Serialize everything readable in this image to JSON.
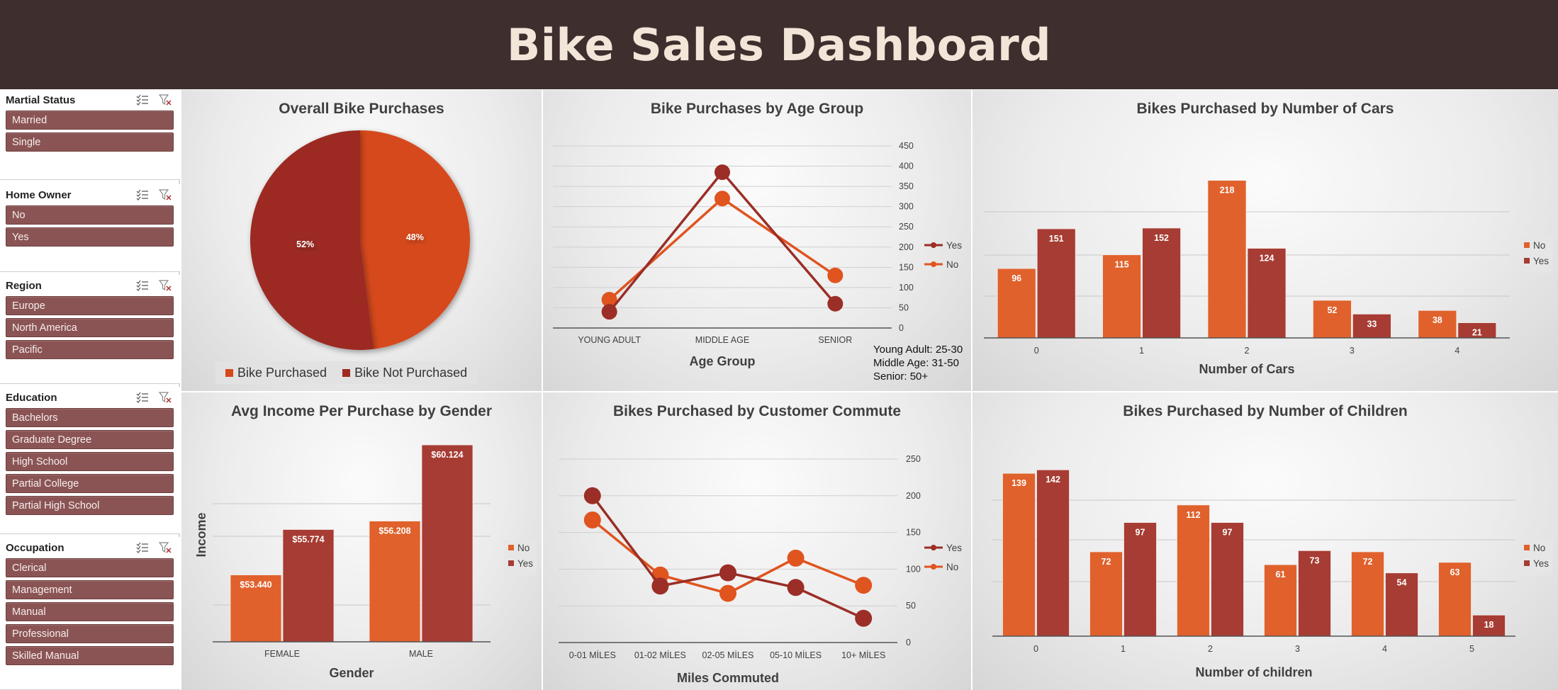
{
  "title": "Bike Sales Dashboard",
  "colors": {
    "no": "#e0612c",
    "yes": "#a63c33",
    "line_yes": "#9b2e26",
    "line_no": "#e0541f",
    "pie_purchased": "#d6491b",
    "pie_not": "#9c2b20",
    "slicer": "#8b5454",
    "header": "#3f2e2e"
  },
  "slicers": [
    {
      "title": "Martial Status",
      "items": [
        "Married",
        "Single"
      ]
    },
    {
      "title": "Home Owner",
      "items": [
        "No",
        "Yes"
      ]
    },
    {
      "title": "Region",
      "items": [
        "Europe",
        "North America",
        "Pacific"
      ]
    },
    {
      "title": "Education",
      "items": [
        "Bachelors",
        "Graduate Degree",
        "High School",
        "Partial College",
        "Partial High School"
      ]
    },
    {
      "title": "Occupation",
      "items": [
        "Clerical",
        "Management",
        "Manual",
        "Professional",
        "Skilled Manual"
      ]
    }
  ],
  "slicer_icons": [
    "multi-select-icon",
    "clear-filter-icon"
  ],
  "age_note": "Young Adult: 25-30 Middle Age: 31-50 Senior: 50+",
  "chart_data": [
    {
      "id": "pie",
      "type": "pie",
      "title": "Overall Bike Purchases",
      "slices": [
        {
          "name": "Bike Purchased",
          "value": 48,
          "label": "48%"
        },
        {
          "name": "Bike Not Purchased",
          "value": 52,
          "label": "52%"
        }
      ],
      "legend": "bottom"
    },
    {
      "id": "age",
      "type": "line",
      "title": "Bike Purchases by Age Group",
      "categories": [
        "YOUNG ADULT",
        "MIDDLE AGE",
        "SENIOR"
      ],
      "series": [
        {
          "name": "Yes",
          "values": [
            40,
            385,
            60
          ]
        },
        {
          "name": "No",
          "values": [
            70,
            320,
            130
          ]
        }
      ],
      "xlabel": "Age Group",
      "ylabel": "",
      "ylim": [
        0,
        450
      ],
      "yticks": [
        "0",
        "50",
        "100",
        "150",
        "200",
        "250",
        "300",
        "350",
        "400",
        "450"
      ],
      "y_axis_side": "right",
      "legend": "right",
      "grid": true
    },
    {
      "id": "cars",
      "type": "bar",
      "title": "Bikes Purchased by Number of Cars",
      "categories": [
        "0",
        "1",
        "2",
        "3",
        "4"
      ],
      "series": [
        {
          "name": "No",
          "values": [
            96,
            115,
            218,
            52,
            38
          ],
          "labels": [
            "96",
            "115",
            "218",
            "52",
            "38"
          ]
        },
        {
          "name": "Yes",
          "values": [
            151,
            152,
            124,
            33,
            21
          ],
          "labels": [
            "151",
            "152",
            "124",
            "33",
            "21"
          ]
        }
      ],
      "xlabel": "Number of Cars",
      "ylabel": "",
      "ylim": [
        0,
        250
      ],
      "legend": "right",
      "grid": true
    },
    {
      "id": "income",
      "type": "bar",
      "title": "Avg Income Per Purchase by Gender",
      "categories": [
        "FEMALE",
        "MALE"
      ],
      "series": [
        {
          "name": "No",
          "values": [
            53440,
            56208
          ],
          "labels": [
            "$53.440",
            "$56.208"
          ]
        },
        {
          "name": "Yes",
          "values": [
            55774,
            60124
          ],
          "labels": [
            "$55.774",
            "$60.124"
          ]
        }
      ],
      "xlabel": "Gender",
      "ylabel": "Income",
      "ylim": [
        50000,
        61000
      ],
      "legend": "right",
      "grid": true
    },
    {
      "id": "commute",
      "type": "line",
      "title": "Bikes Purchased by Customer Commute",
      "categories": [
        "0-01 MİLES",
        "01-02 MİLES",
        "02-05 MİLES",
        "05-10 MİLES",
        "10+ MİLES"
      ],
      "series": [
        {
          "name": "Yes",
          "values": [
            200,
            77,
            95,
            75,
            33
          ]
        },
        {
          "name": "No",
          "values": [
            167,
            92,
            67,
            115,
            78
          ]
        }
      ],
      "xlabel": "Miles Commuted",
      "ylabel": "",
      "ylim": [
        0,
        250
      ],
      "yticks": [
        "0",
        "50",
        "100",
        "150",
        "200",
        "250"
      ],
      "y_axis_side": "right",
      "legend": "right",
      "grid": true
    },
    {
      "id": "children",
      "type": "bar",
      "title": "Bikes Purchased by Number of Children",
      "categories": [
        "0",
        "1",
        "2",
        "3",
        "4",
        "5"
      ],
      "series": [
        {
          "name": "No",
          "values": [
            139,
            72,
            112,
            61,
            72,
            63
          ],
          "labels": [
            "139",
            "72",
            "112",
            "61",
            "72",
            "63"
          ]
        },
        {
          "name": "Yes",
          "values": [
            142,
            97,
            97,
            73,
            54,
            18
          ],
          "labels": [
            "142",
            "97",
            "97",
            "73",
            "54",
            "18"
          ]
        }
      ],
      "xlabel": "Number of children",
      "ylabel": "",
      "ylim": [
        0,
        150
      ],
      "legend": "right",
      "grid": true
    }
  ]
}
